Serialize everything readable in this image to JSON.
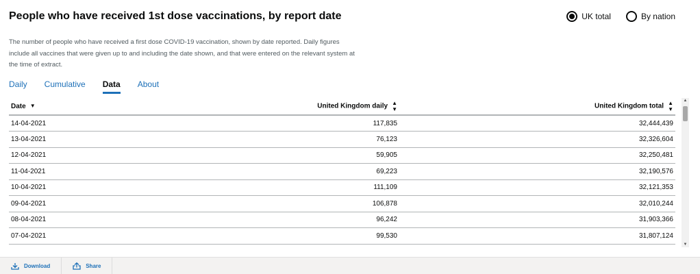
{
  "title": "People who have received 1st dose vaccinations, by report date",
  "radios": [
    {
      "label": "UK total",
      "checked": true
    },
    {
      "label": "By nation",
      "checked": false
    }
  ],
  "description": "The number of people who have received a first dose COVID-19 vaccination, shown by date reported. Daily figures include all vaccines that were given up to and including the date shown, and that were entered on the relevant system at the time of extract.",
  "tabs": [
    {
      "label": "Daily"
    },
    {
      "label": "Cumulative"
    },
    {
      "label": "Data",
      "active": true
    },
    {
      "label": "About"
    }
  ],
  "table": {
    "headers": [
      "Date",
      "United Kingdom daily",
      "United Kingdom total"
    ],
    "rows": [
      [
        "14-04-2021",
        "117,835",
        "32,444,439"
      ],
      [
        "13-04-2021",
        "76,123",
        "32,326,604"
      ],
      [
        "12-04-2021",
        "59,905",
        "32,250,481"
      ],
      [
        "11-04-2021",
        "69,223",
        "32,190,576"
      ],
      [
        "10-04-2021",
        "111,109",
        "32,121,353"
      ],
      [
        "09-04-2021",
        "106,878",
        "32,010,244"
      ],
      [
        "08-04-2021",
        "96,242",
        "31,903,366"
      ],
      [
        "07-04-2021",
        "99,530",
        "31,807,124"
      ]
    ]
  },
  "footer": {
    "download_label": "Download",
    "share_label": "Share"
  },
  "colors": {
    "link": "#1d70b8",
    "text": "#0b0c0c",
    "muted": "#505a5f"
  }
}
